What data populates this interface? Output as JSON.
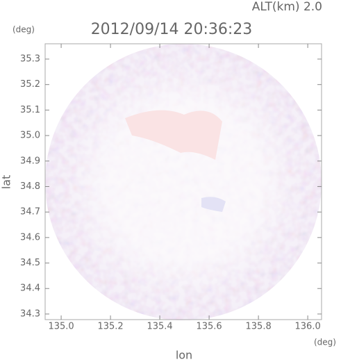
{
  "chart_data": {
    "type": "image",
    "title": "2012/09/14 20:36:23",
    "subtitle": "ALT(km) 2.0",
    "x_label": "lon",
    "y_label": "lat",
    "x_unit": "(deg)",
    "y_unit": "(deg)",
    "xlim": [
      134.935,
      136.056
    ],
    "ylim": [
      34.278,
      35.36
    ],
    "xticks": [
      {
        "value": 135,
        "label": "135.0"
      },
      135.2,
      135.4,
      135.6,
      135.8,
      {
        "value": 136,
        "label": "136.0"
      }
    ],
    "yticks": [
      34.3,
      34.4,
      34.5,
      34.6,
      34.7,
      34.8,
      34.9,
      {
        "value": 35,
        "label": "35.0"
      },
      35.1,
      35.2,
      35.3
    ]
  }
}
